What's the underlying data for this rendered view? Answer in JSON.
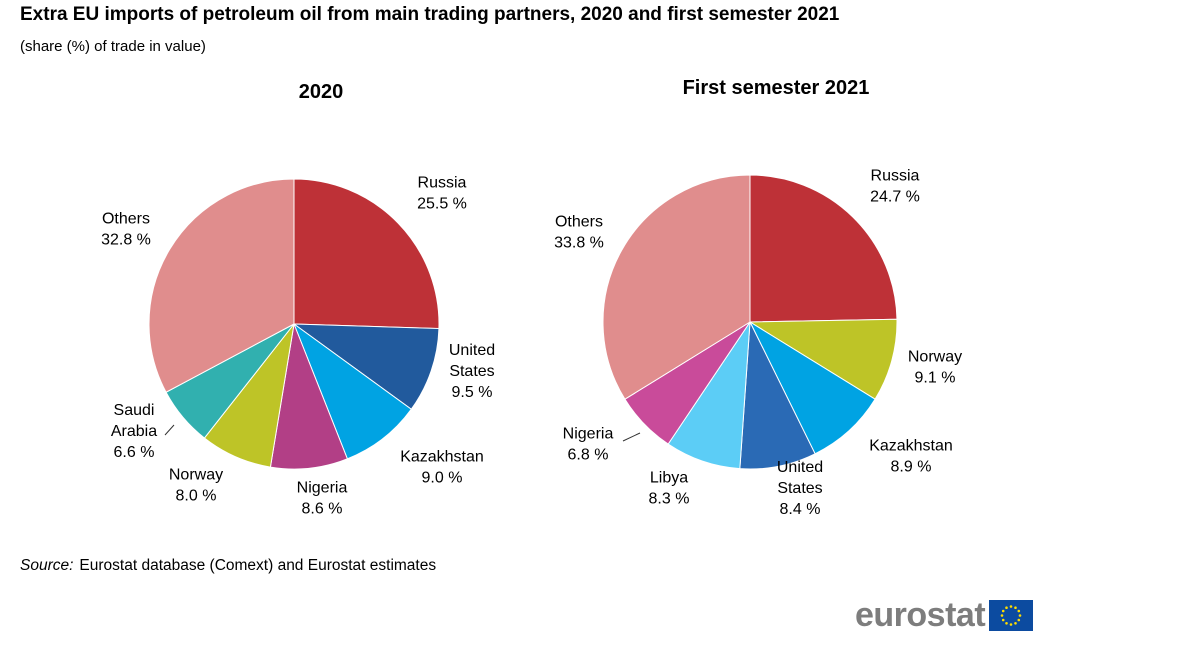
{
  "header": {
    "title": "Extra EU imports of petroleum oil from main trading partners, 2020 and first semester 2021",
    "subtitle": "(share (%) of trade in value)"
  },
  "chart_data": [
    {
      "type": "pie",
      "title": "2020",
      "unit": "%",
      "slices": [
        {
          "label": "Russia",
          "value": 25.5,
          "value_text": "25.5 %",
          "color": "#be3137"
        },
        {
          "label": "United States",
          "value": 9.5,
          "value_text": "9.5 %",
          "color": "#215a9d"
        },
        {
          "label": "Kazakhstan",
          "value": 9.0,
          "value_text": "9.0 %",
          "color": "#00a3e3"
        },
        {
          "label": "Nigeria",
          "value": 8.6,
          "value_text": "8.6 %",
          "color": "#b23f86"
        },
        {
          "label": "Norway",
          "value": 8.0,
          "value_text": "8.0 %",
          "color": "#bec427"
        },
        {
          "label": "Saudi Arabia",
          "value": 6.6,
          "value_text": "6.6 %",
          "color": "#31b0af"
        },
        {
          "label": "Others",
          "value": 32.8,
          "value_text": "32.8 %",
          "color": "#e08d8d"
        }
      ]
    },
    {
      "type": "pie",
      "title": "First semester 2021",
      "unit": "%",
      "slices": [
        {
          "label": "Russia",
          "value": 24.7,
          "value_text": "24.7 %",
          "color": "#be3137"
        },
        {
          "label": "Norway",
          "value": 9.1,
          "value_text": "9.1 %",
          "color": "#bec427"
        },
        {
          "label": "Kazakhstan",
          "value": 8.9,
          "value_text": "8.9 %",
          "color": "#00a3e3"
        },
        {
          "label": "United States",
          "value": 8.4,
          "value_text": "8.4 %",
          "color": "#2a6ab5"
        },
        {
          "label": "Libya",
          "value": 8.3,
          "value_text": "8.3 %",
          "color": "#5ccdf6"
        },
        {
          "label": "Nigeria",
          "value": 6.8,
          "value_text": "6.8 %",
          "color": "#c94b9a"
        },
        {
          "label": "Others",
          "value": 33.8,
          "value_text": "33.8 %",
          "color": "#e08d8d"
        }
      ]
    }
  ],
  "footer": {
    "source_label": "Source:",
    "source_text": "Eurostat database (Comext) and Eurostat estimates",
    "logo_text": "eurostat"
  }
}
